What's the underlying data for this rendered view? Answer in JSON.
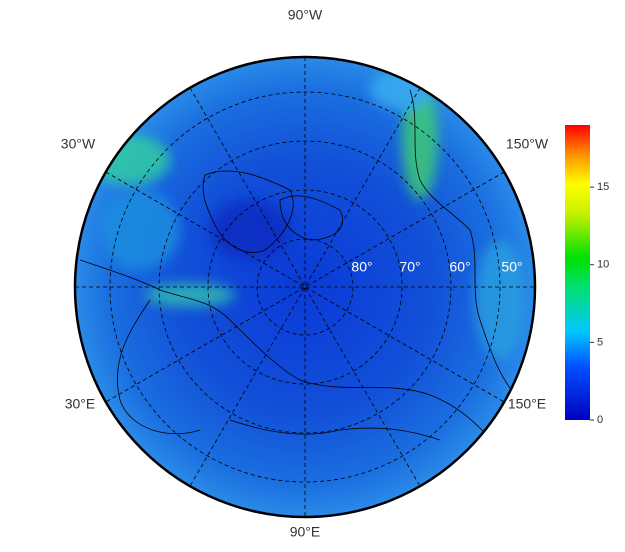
{
  "map": {
    "longitude_labels": [
      "90°W",
      "30°W",
      "150°W",
      "30°E",
      "150°E",
      "90°E"
    ],
    "latitude_labels": [
      "80°",
      "70°",
      "60°",
      "50°"
    ],
    "colorbar": {
      "lim": [
        0,
        19
      ],
      "ticks": [
        0,
        5,
        10,
        15
      ]
    }
  }
}
